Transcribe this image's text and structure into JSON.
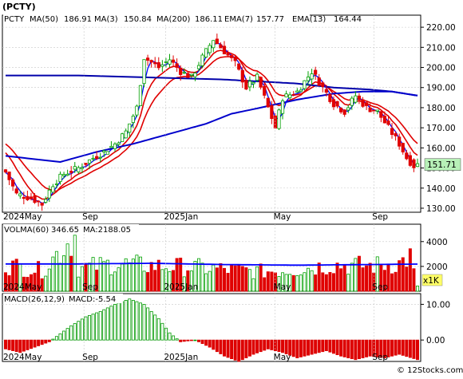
{
  "chart_data": {
    "type": "stock-chart",
    "title": "(PCTY)",
    "watermark": "© 12Stocks.com",
    "colors": {
      "up": "#00a000",
      "down": "#e00000",
      "ma50": "#0000cc",
      "ma3": "#0000ff",
      "ma200": "#0000aa",
      "ema": "#e00000",
      "volma": "#0000ff",
      "macd_up": "#009900",
      "macd_down": "#dd0000",
      "grid": "#c8c8c8"
    },
    "price_panel": {
      "legend": {
        "symbol": "PCTY",
        "ma50_label": "MA(50)",
        "ma50_value": "186.91",
        "ma3_label": "MA(3)",
        "ma3_value": "150.84",
        "ma200_label": "MA(200)",
        "ma200_value": "186.11",
        "ema7_label": "EMA(7)",
        "ema7_value": "157.77",
        "ema13_label": "EMA(13)",
        "ema13_value": "164.44"
      },
      "ylim": [
        128,
        226
      ],
      "y_ticks": [
        "220.00",
        "210.00",
        "200.00",
        "190.00",
        "180.00",
        "170.00",
        "160.00",
        "150.00",
        "140.00",
        "130.00"
      ],
      "last_price": "151.71",
      "x_labels": [
        {
          "label": "2024May",
          "pos": 0.0
        },
        {
          "label": "Sep",
          "pos": 0.195
        },
        {
          "label": "2025Jan",
          "pos": 0.39
        },
        {
          "label": "May",
          "pos": 0.652
        },
        {
          "label": "Sep",
          "pos": 0.888
        }
      ],
      "close_anchors": [
        [
          0,
          148
        ],
        [
          3,
          137
        ],
        [
          7,
          135
        ],
        [
          10,
          132
        ],
        [
          13,
          142
        ],
        [
          16,
          147
        ],
        [
          20,
          150
        ],
        [
          24,
          155
        ],
        [
          27,
          158
        ],
        [
          30,
          162
        ],
        [
          33,
          168
        ],
        [
          36,
          180
        ],
        [
          38,
          205
        ],
        [
          42,
          200
        ],
        [
          45,
          204
        ],
        [
          48,
          198
        ],
        [
          51,
          195
        ],
        [
          54,
          205
        ],
        [
          57,
          214
        ],
        [
          60,
          208
        ],
        [
          63,
          202
        ],
        [
          66,
          190
        ],
        [
          69,
          195
        ],
        [
          72,
          180
        ],
        [
          74,
          170
        ],
        [
          76,
          185
        ],
        [
          80,
          188
        ],
        [
          84,
          198
        ],
        [
          87,
          190
        ],
        [
          90,
          182
        ],
        [
          93,
          178
        ],
        [
          96,
          186
        ],
        [
          99,
          180
        ],
        [
          102,
          178
        ],
        [
          105,
          170
        ],
        [
          108,
          162
        ],
        [
          110,
          155
        ],
        [
          112,
          151
        ],
        [
          113,
          151.7
        ]
      ],
      "ma200_anchors": [
        [
          0,
          196
        ],
        [
          20,
          196
        ],
        [
          40,
          195
        ],
        [
          60,
          194
        ],
        [
          70,
          193
        ],
        [
          80,
          192
        ],
        [
          90,
          190
        ],
        [
          100,
          189
        ],
        [
          106,
          188
        ],
        [
          113,
          186
        ]
      ],
      "ma50_anchors": [
        [
          0,
          156
        ],
        [
          15,
          153
        ],
        [
          25,
          158
        ],
        [
          35,
          162
        ],
        [
          45,
          167
        ],
        [
          55,
          172
        ],
        [
          62,
          177
        ],
        [
          70,
          180
        ],
        [
          80,
          184
        ],
        [
          90,
          187
        ],
        [
          98,
          188
        ],
        [
          106,
          188
        ],
        [
          113,
          186
        ]
      ]
    },
    "volume_panel": {
      "label": "VOLMA(60)",
      "value": "346.65",
      "ma_label": "MA:2188.05",
      "ylim": [
        0,
        5400
      ],
      "y_ticks": [
        "4000",
        "2000"
      ],
      "unit_badge": "x1K",
      "vol_anchors": [
        [
          0,
          2300
        ],
        [
          10,
          1800
        ],
        [
          19,
          4900
        ],
        [
          20,
          2000
        ],
        [
          30,
          2400
        ],
        [
          40,
          2200
        ],
        [
          50,
          2100
        ],
        [
          60,
          1900
        ],
        [
          70,
          1700
        ],
        [
          80,
          1900
        ],
        [
          90,
          2300
        ],
        [
          100,
          2200
        ],
        [
          108,
          2400
        ],
        [
          111,
          3000
        ],
        [
          113,
          350
        ]
      ],
      "volma_anchors": [
        [
          0,
          2200
        ],
        [
          20,
          2200
        ],
        [
          40,
          2250
        ],
        [
          60,
          2150
        ],
        [
          80,
          2100
        ],
        [
          100,
          2150
        ],
        [
          113,
          2188
        ]
      ]
    },
    "macd_panel": {
      "label": "MACD(26,12,9)",
      "value": "MACD:-5.54",
      "ylim": [
        -6,
        13
      ],
      "y_ticks": [
        "10.00",
        "0.00"
      ],
      "hist_anchors": [
        [
          0,
          -2.5
        ],
        [
          4,
          -3.5
        ],
        [
          8,
          -2
        ],
        [
          12,
          -0.5
        ],
        [
          14,
          1
        ],
        [
          18,
          4
        ],
        [
          22,
          6.5
        ],
        [
          26,
          8
        ],
        [
          30,
          10
        ],
        [
          34,
          11.5
        ],
        [
          38,
          10
        ],
        [
          42,
          6
        ],
        [
          45,
          2
        ],
        [
          48,
          -0.5
        ],
        [
          52,
          0
        ],
        [
          56,
          -2
        ],
        [
          60,
          -4.5
        ],
        [
          64,
          -6
        ],
        [
          68,
          -4
        ],
        [
          72,
          -2.5
        ],
        [
          76,
          -3.5
        ],
        [
          80,
          -5
        ],
        [
          84,
          -4
        ],
        [
          88,
          -3
        ],
        [
          92,
          -4.5
        ],
        [
          96,
          -5.5
        ],
        [
          100,
          -4.5
        ],
        [
          104,
          -5
        ],
        [
          108,
          -4
        ],
        [
          113,
          -5.5
        ]
      ]
    }
  }
}
